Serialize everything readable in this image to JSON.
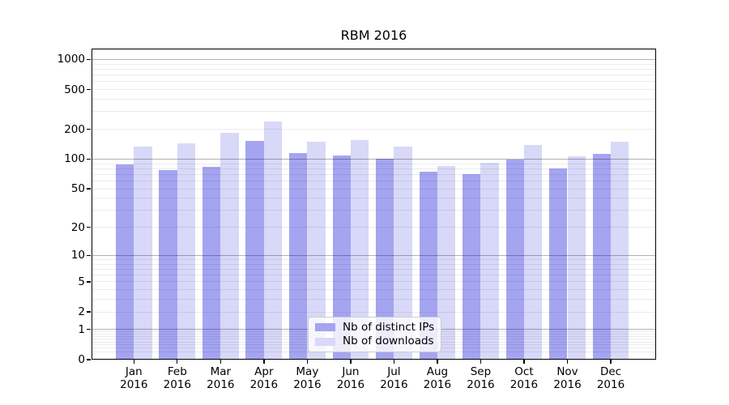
{
  "chart_data": {
    "type": "bar",
    "title": "RBM 2016",
    "categories": [
      "Jan 2016",
      "Feb 2016",
      "Mar 2016",
      "Apr 2016",
      "May 2016",
      "Jun 2016",
      "Jul 2016",
      "Aug 2016",
      "Sep 2016",
      "Oct 2016",
      "Nov 2016",
      "Dec 2016"
    ],
    "x_ticks": [
      {
        "month": "Jan",
        "year": "2016"
      },
      {
        "month": "Feb",
        "year": "2016"
      },
      {
        "month": "Mar",
        "year": "2016"
      },
      {
        "month": "Apr",
        "year": "2016"
      },
      {
        "month": "May",
        "year": "2016"
      },
      {
        "month": "Jun",
        "year": "2016"
      },
      {
        "month": "Jul",
        "year": "2016"
      },
      {
        "month": "Aug",
        "year": "2016"
      },
      {
        "month": "Sep",
        "year": "2016"
      },
      {
        "month": "Oct",
        "year": "2016"
      },
      {
        "month": "Nov",
        "year": "2016"
      },
      {
        "month": "Dec",
        "year": "2016"
      }
    ],
    "series": [
      {
        "name": "Nb of distinct IPs",
        "color": "#a4a4f1",
        "values": [
          88,
          78,
          84,
          152,
          115,
          108,
          100,
          75,
          71,
          99,
          80,
          112
        ]
      },
      {
        "name": "Nb of downloads",
        "color": "#d8d8f8",
        "values": [
          134,
          145,
          184,
          237,
          151,
          156,
          134,
          85,
          91,
          138,
          106,
          150
        ]
      }
    ],
    "y_axis": {
      "scale": "log10(value+1)",
      "tick_values": [
        0,
        1,
        2,
        5,
        10,
        20,
        50,
        100,
        200,
        500,
        1000
      ],
      "tick_labels": [
        "0",
        "1",
        "2",
        "5",
        "10",
        "20",
        "50",
        "100",
        "200",
        "500",
        "1000"
      ],
      "decade_gridlines": [
        1,
        10,
        100,
        1000
      ],
      "minor_gridlines": [
        0.2,
        0.3,
        0.4,
        0.5,
        0.6,
        0.7,
        0.8,
        0.9,
        2,
        3,
        4,
        5,
        6,
        7,
        8,
        9,
        20,
        30,
        40,
        50,
        60,
        70,
        80,
        90,
        200,
        300,
        400,
        500,
        600,
        700,
        800,
        900
      ],
      "ylim": [
        0,
        1285
      ]
    },
    "legend": {
      "position": "lower center"
    },
    "grid": true
  },
  "colors": {
    "background": "#ffffff",
    "axis": "#000000",
    "grid_major": "#b5b5b5",
    "grid_minor": "#ececec",
    "bar_distinct_ips": "#a4a4f1",
    "bar_downloads": "#d8d8f8",
    "legend_border": "#cccccc"
  }
}
